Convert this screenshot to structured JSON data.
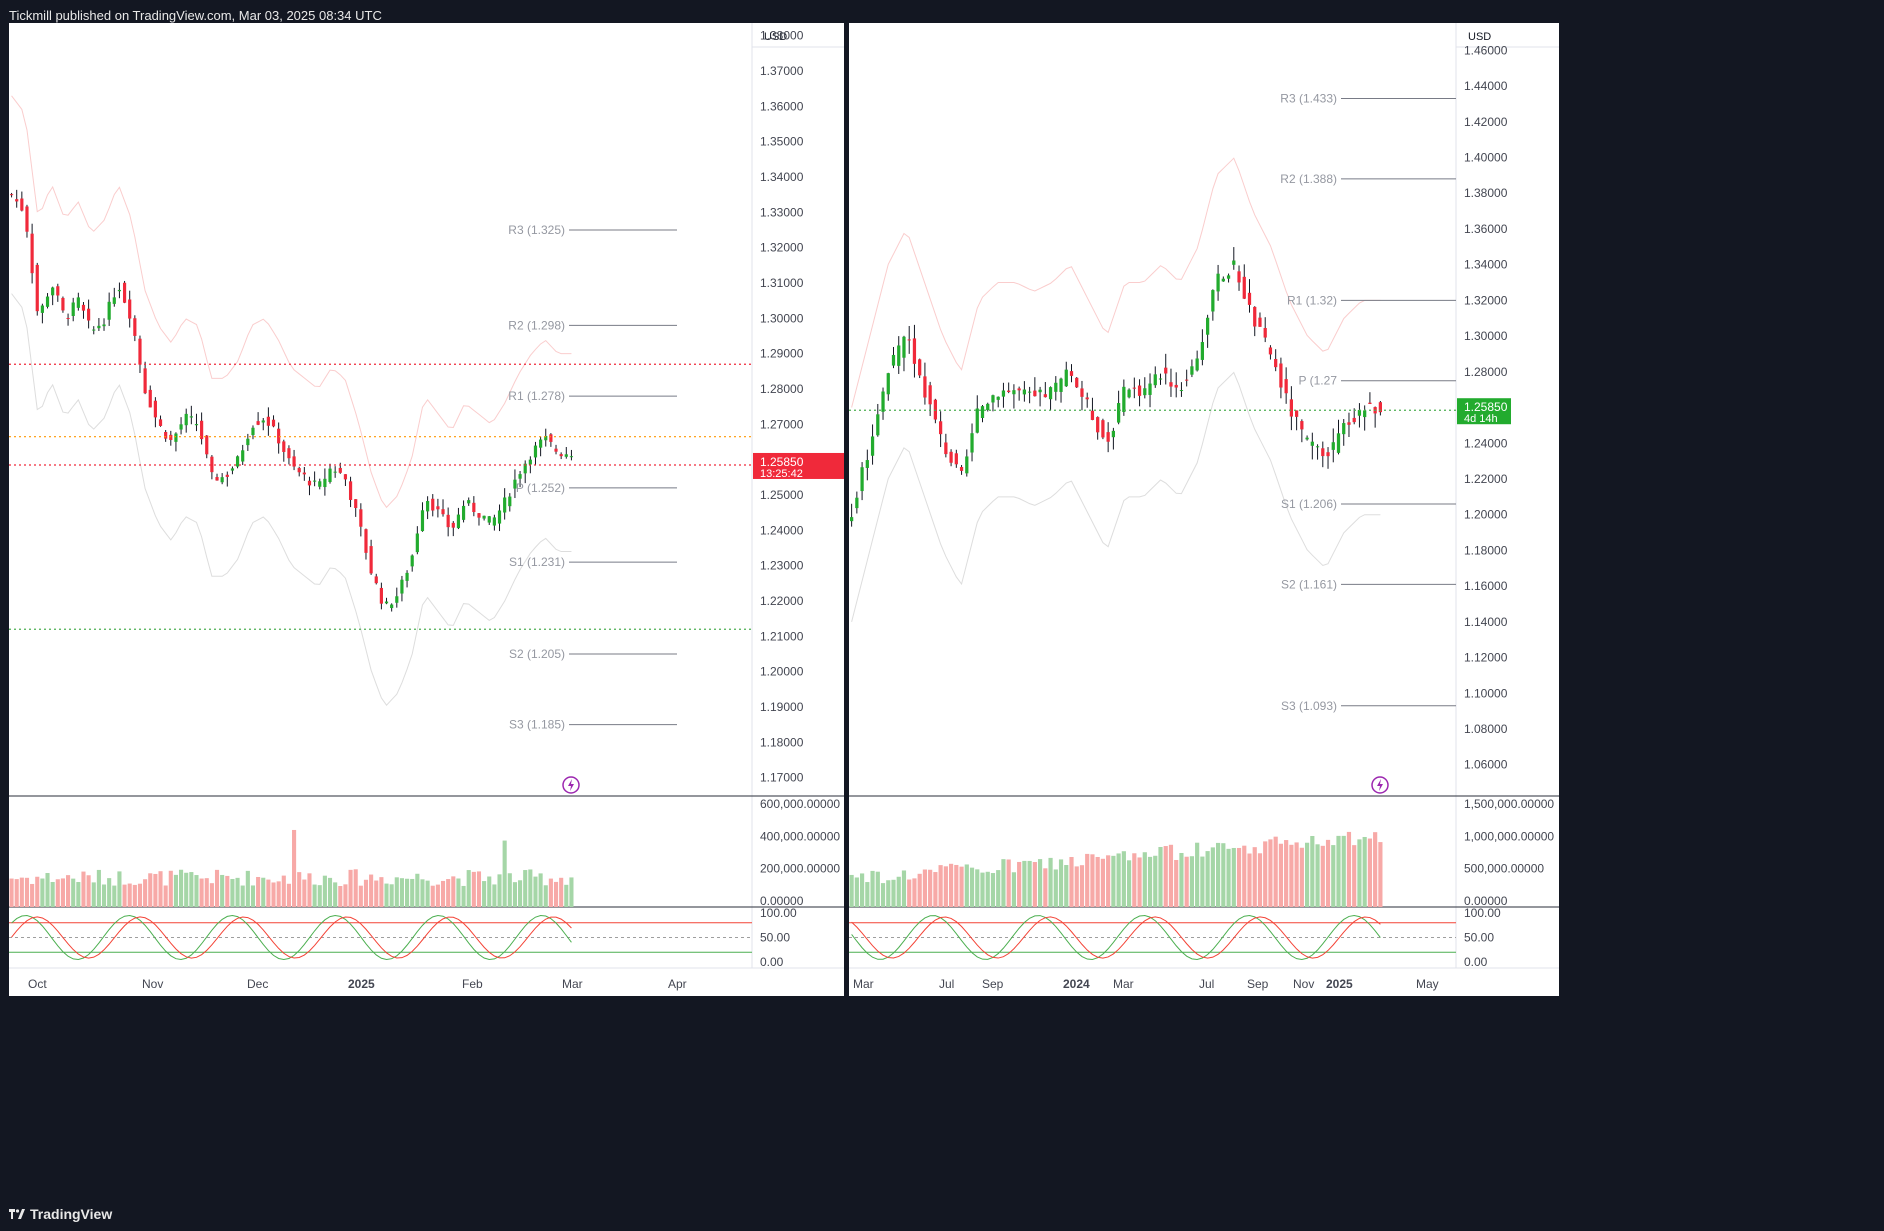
{
  "header": {
    "title": "Tickmill published on TradingView.com, Mar 03, 2025 08:34 UTC"
  },
  "footer": {
    "brand": "TradingView",
    "brand_icon": "tradingview-logo-icon"
  },
  "colors": {
    "up": "#22ab2e",
    "down": "#f0293a",
    "volume_up": "#a5d6a7",
    "volume_down": "#f7a9a7",
    "stoch_k": "#4caf50",
    "stoch_d": "#f44336"
  },
  "left_chart": {
    "currency": "USD",
    "price_ticks": [
      "1.38000",
      "1.37000",
      "1.36000",
      "1.35000",
      "1.34000",
      "1.33000",
      "1.32000",
      "1.31000",
      "1.30000",
      "1.29000",
      "1.28000",
      "1.27000",
      "1.26000",
      "1.25000",
      "1.24000",
      "1.23000",
      "1.22000",
      "1.21000",
      "1.20000",
      "1.19000",
      "1.18000",
      "1.17000"
    ],
    "pivots": [
      {
        "label": "R3 (1.325)",
        "value": 1.325
      },
      {
        "label": "R2 (1.298)",
        "value": 1.298
      },
      {
        "label": "R1 (1.278)",
        "value": 1.278
      },
      {
        "label": "P (1.252)",
        "value": 1.252
      },
      {
        "label": "S1 (1.231)",
        "value": 1.231
      },
      {
        "label": "S2 (1.205)",
        "value": 1.205
      },
      {
        "label": "S3 (1.185)",
        "value": 1.185
      }
    ],
    "last_price": "1.25850",
    "countdown": "13:25:42",
    "volume_ticks": [
      "600,000.00000",
      "400,000.00000",
      "200,000.00000",
      "0.00000"
    ],
    "osc_ticks": [
      "100.00",
      "50.00",
      "0.00"
    ],
    "time_labels": [
      "Oct",
      "Nov",
      "Dec",
      "2025",
      "Feb",
      "Mar",
      "Apr"
    ]
  },
  "right_chart": {
    "currency": "USD",
    "price_ticks": [
      "1.46000",
      "1.44000",
      "1.42000",
      "1.40000",
      "1.38000",
      "1.36000",
      "1.34000",
      "1.32000",
      "1.30000",
      "1.28000",
      "1.26000",
      "1.24000",
      "1.22000",
      "1.20000",
      "1.18000",
      "1.16000",
      "1.14000",
      "1.12000",
      "1.10000",
      "1.08000",
      "1.06000"
    ],
    "pivots": [
      {
        "label": "R3 (1.433)",
        "value": 1.433
      },
      {
        "label": "R2 (1.388)",
        "value": 1.388
      },
      {
        "label": "R1 (1.32)",
        "value": 1.32
      },
      {
        "label": "P (1.27",
        "value": 1.275
      },
      {
        "label": "S1 (1.206)",
        "value": 1.206
      },
      {
        "label": "S2 (1.161)",
        "value": 1.161
      },
      {
        "label": "S3 (1.093)",
        "value": 1.093
      }
    ],
    "last_price": "1.25850",
    "countdown": "4d 14h",
    "volume_ticks": [
      "1,500,000.00000",
      "1,000,000.00000",
      "500,000.00000",
      "0.00000"
    ],
    "osc_ticks": [
      "100.00",
      "50.00",
      "0.00"
    ],
    "time_labels": [
      "Mar",
      "Jul",
      "Sep",
      "2024",
      "Mar",
      "Jul",
      "Sep",
      "Nov",
      "2025",
      "May"
    ]
  },
  "chart_data": [
    {
      "type": "candlestick",
      "timeframe": "daily",
      "y_axis_range": [
        1.17,
        1.385
      ],
      "pivot_levels": {
        "R3": 1.325,
        "R2": 1.298,
        "R1": 1.278,
        "P": 1.252,
        "S1": 1.231,
        "S2": 1.205,
        "S3": 1.185
      },
      "close_path": [
        1.335,
        1.33,
        1.3,
        1.31,
        1.3,
        1.305,
        1.296,
        1.3,
        1.31,
        1.3,
        1.28,
        1.27,
        1.265,
        1.272,
        1.27,
        1.255,
        1.255,
        1.26,
        1.27,
        1.272,
        1.266,
        1.258,
        1.255,
        1.252,
        1.258,
        1.255,
        1.243,
        1.228,
        1.218,
        1.222,
        1.232,
        1.25,
        1.245,
        1.24,
        1.248,
        1.245,
        1.242,
        1.248,
        1.256,
        1.262,
        1.266,
        1.262,
        1.262
      ],
      "horizontal_lines": [
        1.287,
        1.2665,
        1.2585,
        1.212
      ],
      "last_price": 1.2585
    },
    {
      "type": "candlestick",
      "timeframe": "weekly",
      "y_axis_range": [
        1.05,
        1.47
      ],
      "pivot_levels": {
        "R3": 1.433,
        "R2": 1.388,
        "R1": 1.32,
        "S1": 1.206,
        "S2": 1.161,
        "S3": 1.093
      },
      "close_path": [
        1.2,
        1.24,
        1.28,
        1.3,
        1.27,
        1.24,
        1.22,
        1.26,
        1.27,
        1.27,
        1.265,
        1.27,
        1.28,
        1.26,
        1.24,
        1.27,
        1.27,
        1.28,
        1.27,
        1.29,
        1.33,
        1.34,
        1.31,
        1.29,
        1.26,
        1.24,
        1.23,
        1.25,
        1.26,
        1.26
      ],
      "horizontal_lines": [
        1.2585
      ],
      "last_price": 1.2585
    }
  ]
}
